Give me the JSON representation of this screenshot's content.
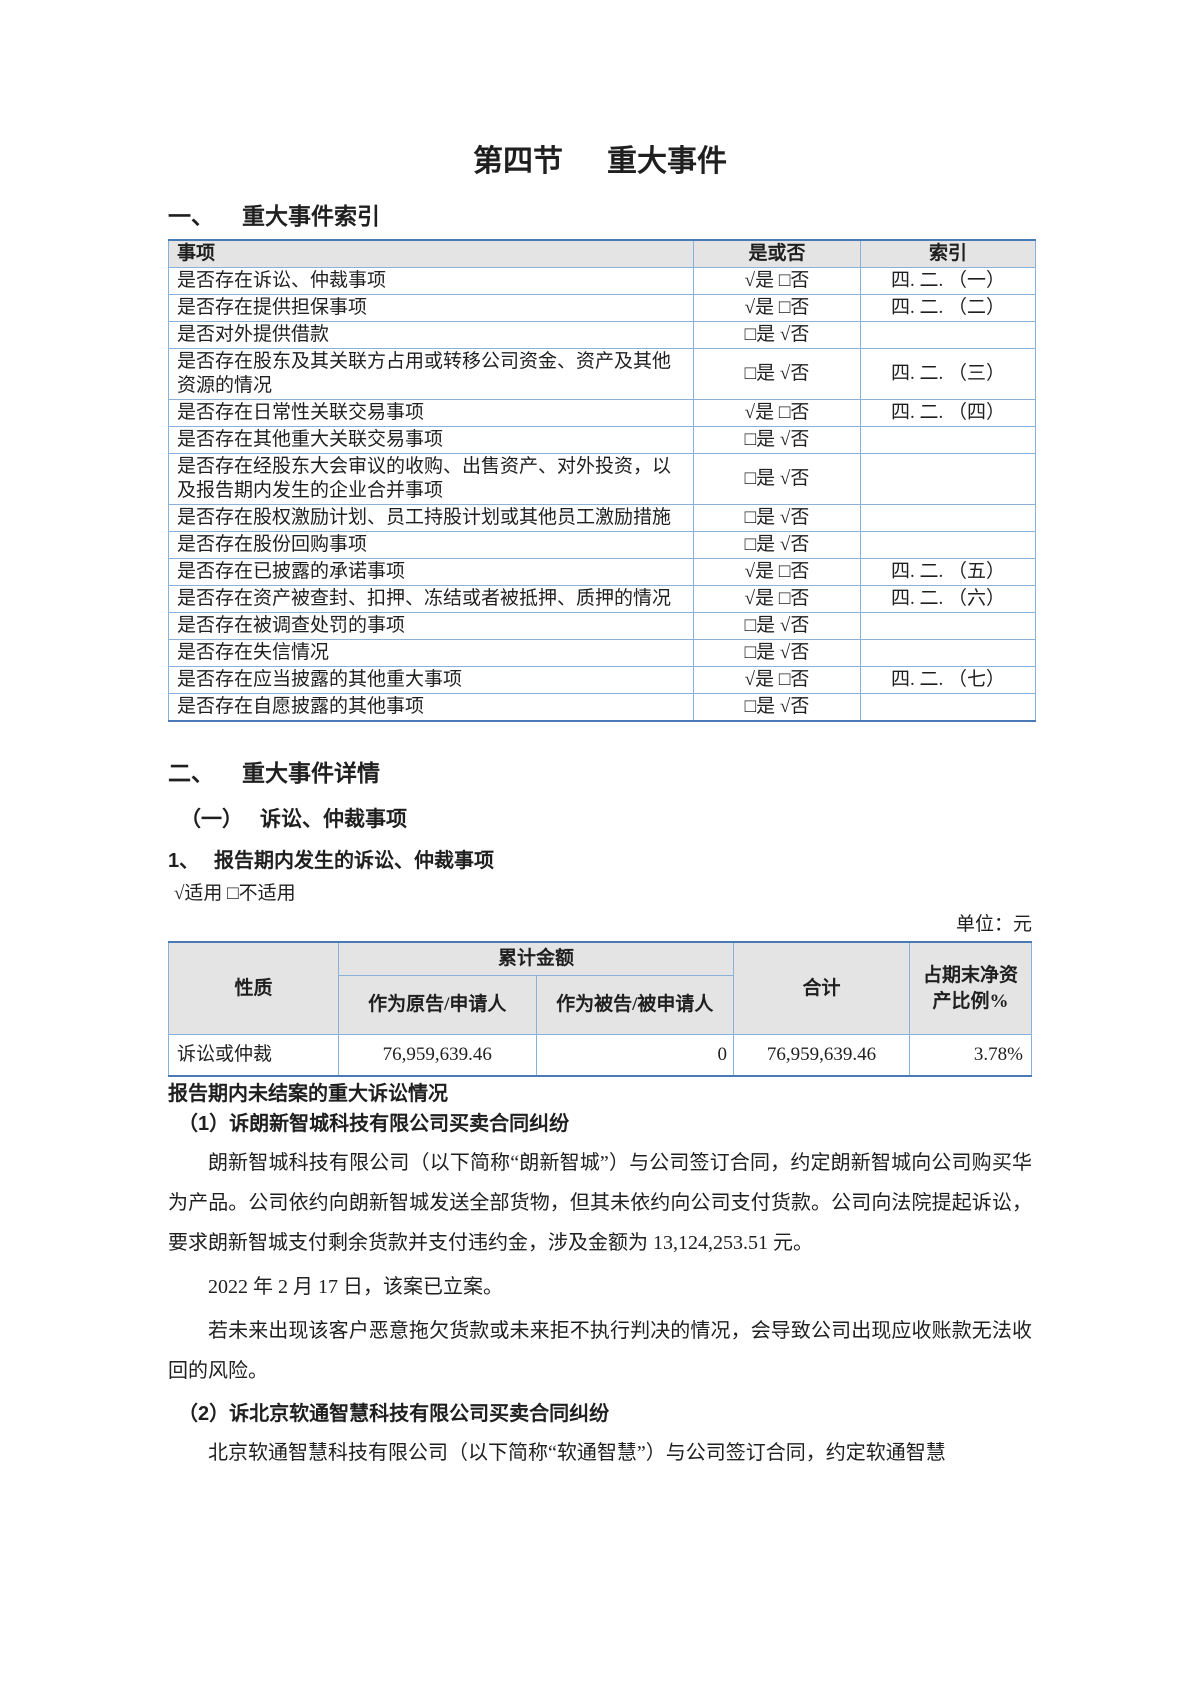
{
  "document": {
    "title": {
      "prefix": "第四节",
      "text": "重大事件"
    },
    "index_section": {
      "num": "一、",
      "heading": "重大事件索引",
      "table": {
        "headers": {
          "item": "事项",
          "yes_no": "是或否",
          "index": "索引"
        },
        "rows": [
          {
            "item": "是否存在诉讼、仲裁事项",
            "yes_no": "√是 □否",
            "index": "四. 二. （一）"
          },
          {
            "item": "是否存在提供担保事项",
            "yes_no": "√是 □否",
            "index": "四. 二. （二）"
          },
          {
            "item": "是否对外提供借款",
            "yes_no": "□是 √否",
            "index": ""
          },
          {
            "item": "是否存在股东及其关联方占用或转移公司资金、资产及其他资源的情况",
            "yes_no": "□是 √否",
            "index": "四. 二. （三）"
          },
          {
            "item": "是否存在日常性关联交易事项",
            "yes_no": "√是 □否",
            "index": "四. 二. （四）"
          },
          {
            "item": "是否存在其他重大关联交易事项",
            "yes_no": "□是 √否",
            "index": ""
          },
          {
            "item": "是否存在经股东大会审议的收购、出售资产、对外投资，以及报告期内发生的企业合并事项",
            "yes_no": "□是 √否",
            "index": ""
          },
          {
            "item": "是否存在股权激励计划、员工持股计划或其他员工激励措施",
            "yes_no": "□是 √否",
            "index": ""
          },
          {
            "item": "是否存在股份回购事项",
            "yes_no": "□是 √否",
            "index": ""
          },
          {
            "item": "是否存在已披露的承诺事项",
            "yes_no": "√是 □否",
            "index": "四. 二. （五）"
          },
          {
            "item": "是否存在资产被查封、扣押、冻结或者被抵押、质押的情况",
            "yes_no": "√是 □否",
            "index": "四. 二. （六）"
          },
          {
            "item": "是否存在被调查处罚的事项",
            "yes_no": "□是 √否",
            "index": ""
          },
          {
            "item": "是否存在失信情况",
            "yes_no": "□是 √否",
            "index": ""
          },
          {
            "item": "是否存在应当披露的其他重大事项",
            "yes_no": "√是 □否",
            "index": "四. 二. （七）"
          },
          {
            "item": "是否存在自愿披露的其他事项",
            "yes_no": "□是 √否",
            "index": ""
          }
        ]
      }
    },
    "detail_section": {
      "num": "二、",
      "heading": "重大事件详情",
      "sub1": {
        "num": "（一）",
        "heading": "诉讼、仲裁事项"
      },
      "sub2": {
        "num": "1、",
        "heading": "报告期内发生的诉讼、仲裁事项"
      },
      "applicability": "√适用 □不适用",
      "unit_label": "单位：元",
      "litigation_table": {
        "headers": {
          "nature": "性质",
          "cumulative": "累计金额",
          "as_plaintiff": "作为原告/申请人",
          "as_defendant": "作为被告/被申请人",
          "total": "合计",
          "net_asset_ratio": "占期末净资产比例%"
        },
        "rows": [
          {
            "nature": "诉讼或仲裁",
            "as_plaintiff": "76,959,639.46",
            "as_defendant": "0",
            "total": "76,959,639.46",
            "ratio": "3.78%"
          }
        ]
      },
      "pending_heading": "报告期内未结案的重大诉讼情况",
      "case1": {
        "heading": "（1）诉朗新智城科技有限公司买卖合同纠纷",
        "paragraphs": [
          "朗新智城科技有限公司（以下简称“朗新智城”）与公司签订合同，约定朗新智城向公司购买华为产品。公司依约向朗新智城发送全部货物，但其未依约向公司支付货款。公司向法院提起诉讼，要求朗新智城支付剩余货款并支付违约金，涉及金额为 13,124,253.51 元。",
          "2022 年 2 月 17 日，该案已立案。",
          "若未来出现该客户恶意拖欠货款或未来拒不执行判决的情况，会导致公司出现应收账款无法收回的风险。"
        ]
      },
      "case2": {
        "heading": "（2）诉北京软通智慧科技有限公司买卖合同纠纷",
        "paragraphs": [
          "北京软通智慧科技有限公司（以下简称“软通智慧”）与公司签订合同，约定软通智慧"
        ]
      }
    },
    "colors": {
      "table_border": "#8ab1d7",
      "table_border_dark": "#4a7ab5",
      "header_bg": "#e4e4e4"
    }
  }
}
